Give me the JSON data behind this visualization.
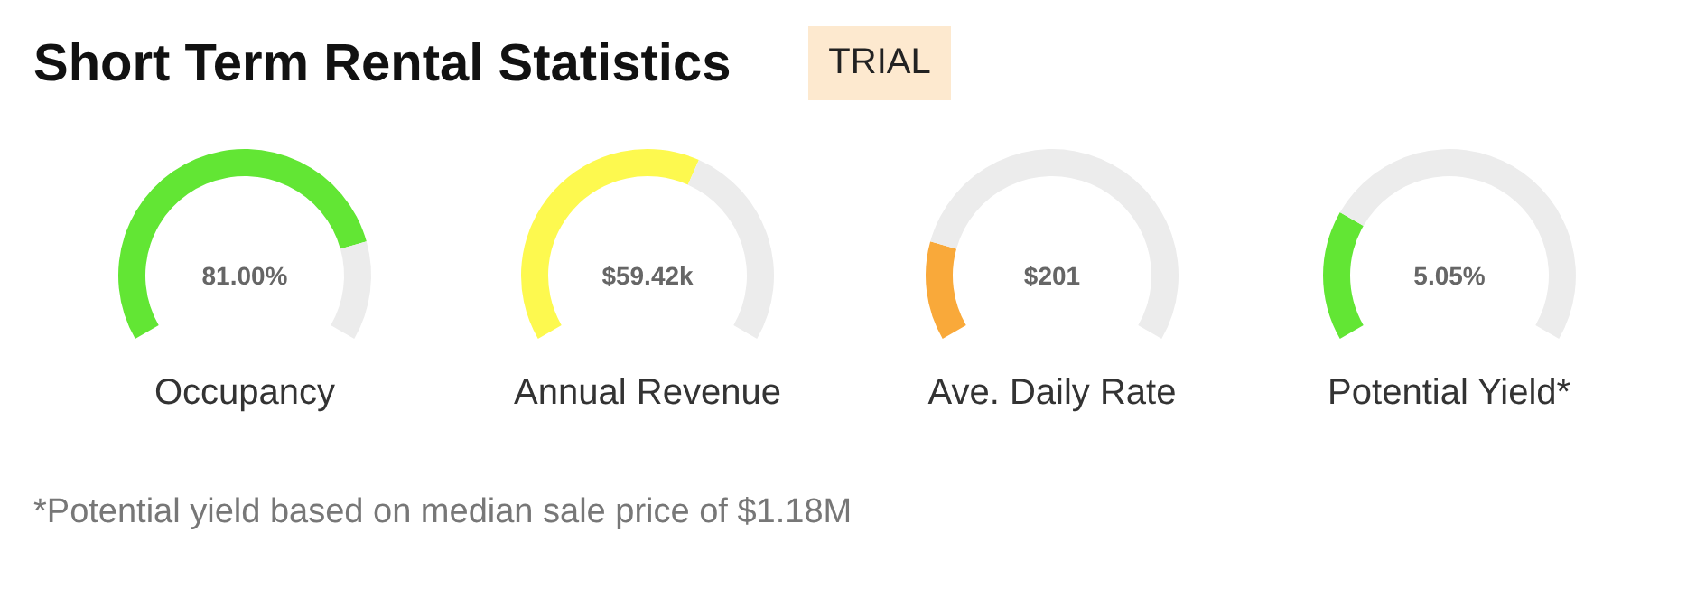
{
  "chart_data": [
    {
      "type": "other",
      "title": "Short Term Rental Statistics",
      "annotations": [
        "TRIAL",
        "*Potential yield based on median sale price of $1.18M"
      ]
    },
    {
      "type": "donut",
      "xlabel": "Occupancy",
      "categories": [
        null,
        null
      ],
      "values": [
        81,
        19
      ],
      "colors": [
        "#62e634",
        "#ececec"
      ],
      "annotations": [
        "81.00%"
      ]
    },
    {
      "type": "donut",
      "xlabel": "Annual Revenue",
      "categories": [
        null,
        null
      ],
      "values": [
        60,
        40
      ],
      "colors": [
        "#fdf94f",
        "#ececec"
      ],
      "annotations": [
        "$59.42k"
      ]
    },
    {
      "type": "donut",
      "xlabel": "Ave. Daily Rate",
      "categories": [
        null,
        null
      ],
      "values": [
        19,
        81
      ],
      "colors": [
        "#f9a93a",
        "#ececec"
      ],
      "annotations": [
        "$201"
      ]
    },
    {
      "type": "donut",
      "xlabel": "Potential Yield*",
      "categories": [
        null,
        null
      ],
      "values": [
        25,
        75
      ],
      "colors": [
        "#62e634",
        "#ececec"
      ],
      "annotations": [
        "5.05%"
      ]
    }
  ]
}
